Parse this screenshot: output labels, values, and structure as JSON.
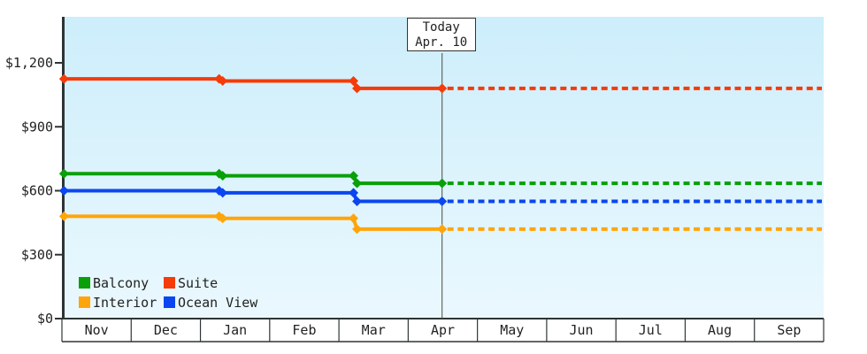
{
  "window": {
    "frame_border_color": "#ecab5f",
    "background_color": "#ffffff"
  },
  "today_marker": {
    "line1": "Today",
    "line2": "Apr. 10",
    "month": "Apr",
    "frac": 0.49
  },
  "legend": {
    "items": [
      {
        "label": "Balcony"
      },
      {
        "label": "Suite"
      },
      {
        "label": "Interior"
      },
      {
        "label": "Ocean View"
      }
    ]
  },
  "chart_data": {
    "type": "line",
    "subtype": "step-line-with-projection",
    "months": [
      "Nov",
      "Dec",
      "Jan",
      "Feb",
      "Mar",
      "Apr",
      "May",
      "Jun",
      "Jul",
      "Aug",
      "Sep"
    ],
    "y_axis": {
      "ticks": [
        0,
        300,
        600,
        900,
        1200
      ],
      "tick_labels": [
        "$0",
        "$300",
        "$600",
        "$900",
        "$1,200"
      ],
      "ylim": [
        0,
        1450
      ],
      "currency_prefix": "$"
    },
    "colors": {
      "plot_bg_top": "#cdeefb",
      "plot_bg_bottom": "#eaf8fe",
      "axis": "#2e3436",
      "band_bg": "#ffffff",
      "today_line": "#4a4a4a",
      "text": "#222222"
    },
    "legend_position": "bottom-left-inside",
    "grid": "off",
    "projection_style": "dashed after today marker, flat at last value",
    "series": [
      {
        "name": "Suite",
        "color": "#f53b08",
        "points": [
          {
            "month": "Nov",
            "frac": 0.03,
            "value": 1125
          },
          {
            "month": "Jan",
            "frac": 0.27,
            "value": 1115
          },
          {
            "month": "Mar",
            "frac": 0.21,
            "value": 1080
          }
        ],
        "projected_value": 1080
      },
      {
        "name": "Balcony",
        "color": "#09a009",
        "points": [
          {
            "month": "Nov",
            "frac": 0.03,
            "value": 680
          },
          {
            "month": "Jan",
            "frac": 0.27,
            "value": 670
          },
          {
            "month": "Mar",
            "frac": 0.21,
            "value": 635
          }
        ],
        "projected_value": 635
      },
      {
        "name": "Ocean View",
        "color": "#0b46f0",
        "points": [
          {
            "month": "Nov",
            "frac": 0.03,
            "value": 600
          },
          {
            "month": "Jan",
            "frac": 0.27,
            "value": 590
          },
          {
            "month": "Mar",
            "frac": 0.21,
            "value": 550
          }
        ],
        "projected_value": 550
      },
      {
        "name": "Interior",
        "color": "#ffa50a",
        "points": [
          {
            "month": "Nov",
            "frac": 0.03,
            "value": 480
          },
          {
            "month": "Jan",
            "frac": 0.27,
            "value": 470
          },
          {
            "month": "Mar",
            "frac": 0.21,
            "value": 420
          }
        ],
        "projected_value": 420
      }
    ]
  }
}
